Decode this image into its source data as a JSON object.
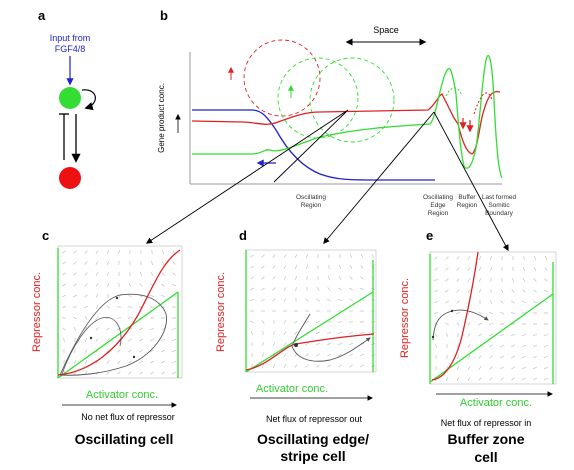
{
  "panel_a": {
    "letter": "a",
    "input_label_line1": "Input from",
    "input_label_line2": "FGF4/8"
  },
  "panel_b": {
    "letter": "b",
    "space_label": "Space",
    "yaxis_label": "Gene product conc.",
    "region_oscillating_line1": "Oscillating",
    "region_oscillating_line2": "Region",
    "region_edge_line1": "Oscillating",
    "region_edge_line2": "Edge",
    "region_edge_line3": "Region",
    "region_buffer_line1": "Buffer",
    "region_buffer_line2": "Region",
    "region_last_line1": "Last formed",
    "region_last_line2": "Somitic",
    "region_last_line3": "Boundary"
  },
  "panel_c": {
    "letter": "c",
    "ylabel": "Repressor conc.",
    "xlabel": "Activator conc.",
    "flux_text": "No net flux of repressor",
    "title": "Oscillating cell"
  },
  "panel_d": {
    "letter": "d",
    "ylabel": "Repressor conc.",
    "xlabel": "Activator conc.",
    "flux_text": "Net flux of repressor out",
    "title_line1": "Oscillating edge/",
    "title_line2": "stripe cell"
  },
  "panel_e": {
    "letter": "e",
    "ylabel": "Repressor conc.",
    "xlabel": "Activator conc.",
    "flux_text": "Net flux of repressor in",
    "title_line1": "Buffer zone",
    "title_line2": "cell"
  },
  "colors": {
    "activator": "#33dd33",
    "repressor": "#dd2222",
    "input": "#2222cc",
    "trajectory": "#555555"
  }
}
